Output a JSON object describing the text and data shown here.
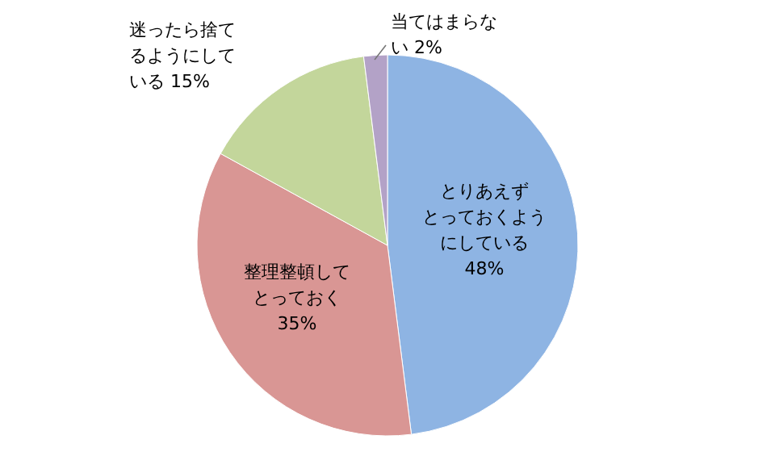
{
  "chart_data": {
    "type": "pie",
    "categories": [
      "とりあえずとっておくようにしている",
      "整理整頓してとっておく",
      "迷ったら捨てるようにしている",
      "当てはまらない"
    ],
    "values": [
      48,
      35,
      15,
      2
    ],
    "colors": [
      "#8eb4e3",
      "#d99694",
      "#c3d69b",
      "#b3a2c7"
    ],
    "value_labels": [
      "48%",
      "35%",
      "15%",
      "2%"
    ]
  }
}
